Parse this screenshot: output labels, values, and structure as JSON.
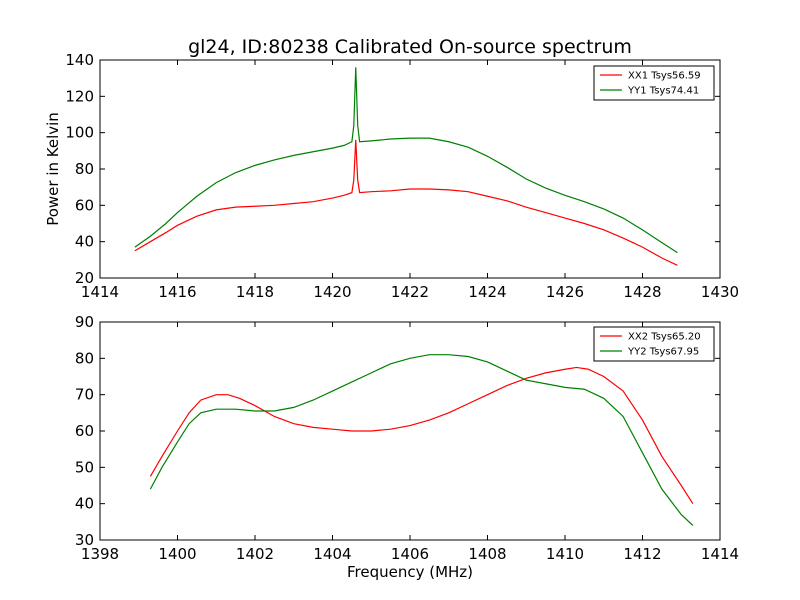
{
  "figure": {
    "title": "gl24, ID:80238 Calibrated On-source spectrum",
    "xlabel": "Frequency (MHz)"
  },
  "chart_data": [
    {
      "type": "line",
      "title": "gl24, ID:80238 Calibrated On-source spectrum",
      "xlabel": "",
      "ylabel": "Power in Kelvin",
      "xlim": [
        1414,
        1430
      ],
      "ylim": [
        20,
        140
      ],
      "xticks": [
        "1414",
        "1416",
        "1418",
        "1420",
        "1422",
        "1424",
        "1426",
        "1428",
        "1430"
      ],
      "yticks": [
        "20",
        "40",
        "60",
        "80",
        "100",
        "120",
        "140"
      ],
      "legend_location": "top-right",
      "grid": false,
      "series": [
        {
          "name": "XX1 Tsys56.59",
          "color": "#ff0000",
          "x": [
            1414.9,
            1415.3,
            1415.7,
            1416.0,
            1416.5,
            1417.0,
            1417.5,
            1418.0,
            1418.5,
            1419.0,
            1419.5,
            1420.0,
            1420.3,
            1420.5,
            1420.55,
            1420.6,
            1420.65,
            1420.7,
            1421.0,
            1421.5,
            1422.0,
            1422.5,
            1423.0,
            1423.5,
            1424.0,
            1424.5,
            1425.0,
            1425.5,
            1426.0,
            1426.5,
            1427.0,
            1427.5,
            1428.0,
            1428.5,
            1428.9
          ],
          "values": [
            35,
            40,
            45,
            49,
            54,
            57.5,
            59,
            59.5,
            60,
            61,
            62,
            64,
            65.5,
            67,
            74,
            96,
            74,
            67,
            67.5,
            68,
            69,
            69,
            68.5,
            67.5,
            65,
            62.5,
            59,
            56,
            53,
            50,
            46.5,
            42,
            37,
            31,
            27
          ]
        },
        {
          "name": "YY1 Tsys74.41",
          "color": "#008000",
          "x": [
            1414.9,
            1415.3,
            1415.7,
            1416.0,
            1416.5,
            1417.0,
            1417.5,
            1418.0,
            1418.5,
            1419.0,
            1419.5,
            1420.0,
            1420.3,
            1420.5,
            1420.55,
            1420.6,
            1420.65,
            1420.7,
            1421.0,
            1421.5,
            1422.0,
            1422.5,
            1423.0,
            1423.5,
            1424.0,
            1424.5,
            1425.0,
            1425.5,
            1426.0,
            1426.5,
            1427.0,
            1427.5,
            1428.0,
            1428.5,
            1428.9
          ],
          "values": [
            37,
            43,
            50,
            56,
            65,
            72.5,
            78,
            82,
            85,
            87.5,
            89.5,
            91.5,
            93,
            95,
            104,
            136,
            104,
            95,
            95.5,
            96.5,
            97,
            97,
            95,
            92,
            87,
            81,
            74.5,
            69.5,
            65.5,
            62,
            58,
            53,
            46.5,
            39.5,
            34
          ]
        }
      ]
    },
    {
      "type": "line",
      "title": "",
      "xlabel": "Frequency (MHz)",
      "ylabel": "",
      "xlim": [
        1398,
        1414
      ],
      "ylim": [
        30,
        90
      ],
      "xticks": [
        "1398",
        "1400",
        "1402",
        "1404",
        "1406",
        "1408",
        "1410",
        "1412",
        "1414"
      ],
      "yticks": [
        "30",
        "40",
        "50",
        "60",
        "70",
        "80",
        "90"
      ],
      "legend_location": "top-right",
      "grid": false,
      "series": [
        {
          "name": "XX2 Tsys65.20",
          "color": "#ff0000",
          "x": [
            1399.3,
            1399.6,
            1400.0,
            1400.3,
            1400.6,
            1401.0,
            1401.3,
            1401.6,
            1402.0,
            1402.5,
            1403.0,
            1403.5,
            1404.0,
            1404.5,
            1405.0,
            1405.5,
            1406.0,
            1406.5,
            1407.0,
            1407.5,
            1408.0,
            1408.5,
            1409.0,
            1409.5,
            1410.0,
            1410.3,
            1410.6,
            1411.0,
            1411.5,
            1412.0,
            1412.5,
            1413.0,
            1413.3
          ],
          "values": [
            47.5,
            53,
            60,
            65,
            68.5,
            70,
            70,
            69,
            67,
            64,
            62,
            61,
            60.5,
            60,
            60,
            60.5,
            61.5,
            63,
            65,
            67.5,
            70,
            72.5,
            74.5,
            76,
            77,
            77.5,
            77,
            75,
            71,
            63,
            53,
            45,
            40
          ]
        },
        {
          "name": "YY2 Tsys67.95",
          "color": "#008000",
          "x": [
            1399.3,
            1399.6,
            1400.0,
            1400.3,
            1400.6,
            1401.0,
            1401.5,
            1402.0,
            1402.5,
            1403.0,
            1403.5,
            1404.0,
            1404.5,
            1405.0,
            1405.5,
            1406.0,
            1406.5,
            1407.0,
            1407.5,
            1408.0,
            1408.5,
            1409.0,
            1409.5,
            1410.0,
            1410.5,
            1411.0,
            1411.5,
            1412.0,
            1412.5,
            1413.0,
            1413.3
          ],
          "values": [
            44,
            50,
            57,
            62,
            65,
            66,
            66,
            65.5,
            65.5,
            66.5,
            68.5,
            71,
            73.5,
            76,
            78.5,
            80,
            81,
            81,
            80.5,
            79,
            76.5,
            74,
            73,
            72,
            71.5,
            69,
            64,
            54,
            44,
            37,
            34
          ]
        }
      ]
    }
  ]
}
